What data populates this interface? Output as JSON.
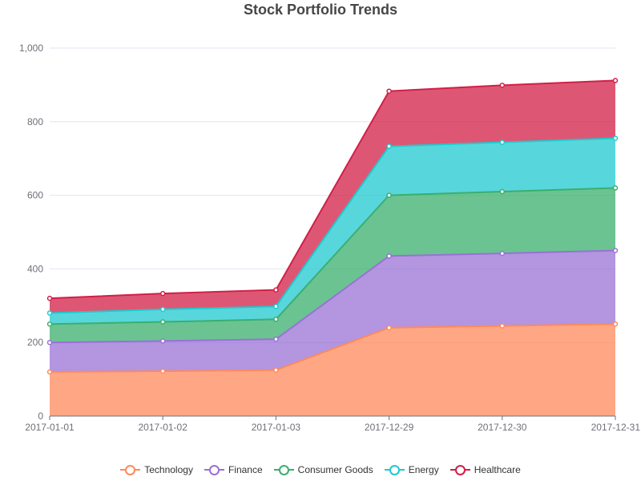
{
  "chart_data": {
    "type": "area",
    "stacked": true,
    "title": "Stock Portfolio Trends",
    "x": [
      "2017-01-01",
      "2017-01-02",
      "2017-01-03",
      "2017-12-29",
      "2017-12-30",
      "2017-12-31"
    ],
    "ylim": [
      0,
      1000
    ],
    "yticks": [
      0,
      200,
      400,
      600,
      800,
      1000
    ],
    "ytick_labels": [
      "0",
      "200",
      "400",
      "600",
      "800",
      "1,000"
    ],
    "grid": true,
    "legend_position": "bottom",
    "series": [
      {
        "name": "Technology",
        "color": "#ff8a5b",
        "values": [
          120,
          122,
          125,
          240,
          245,
          250
        ]
      },
      {
        "name": "Finance",
        "color": "#9a71d6",
        "values": [
          80,
          82,
          84,
          195,
          197,
          200
        ]
      },
      {
        "name": "Consumer Goods",
        "color": "#3aaf6e",
        "values": [
          50,
          52,
          54,
          165,
          168,
          170
        ]
      },
      {
        "name": "Energy",
        "color": "#1fc9cf",
        "values": [
          30,
          34,
          35,
          133,
          134,
          135
        ]
      },
      {
        "name": "Healthcare",
        "color": "#d21f47",
        "values": [
          40,
          43,
          45,
          150,
          155,
          157
        ]
      }
    ]
  }
}
